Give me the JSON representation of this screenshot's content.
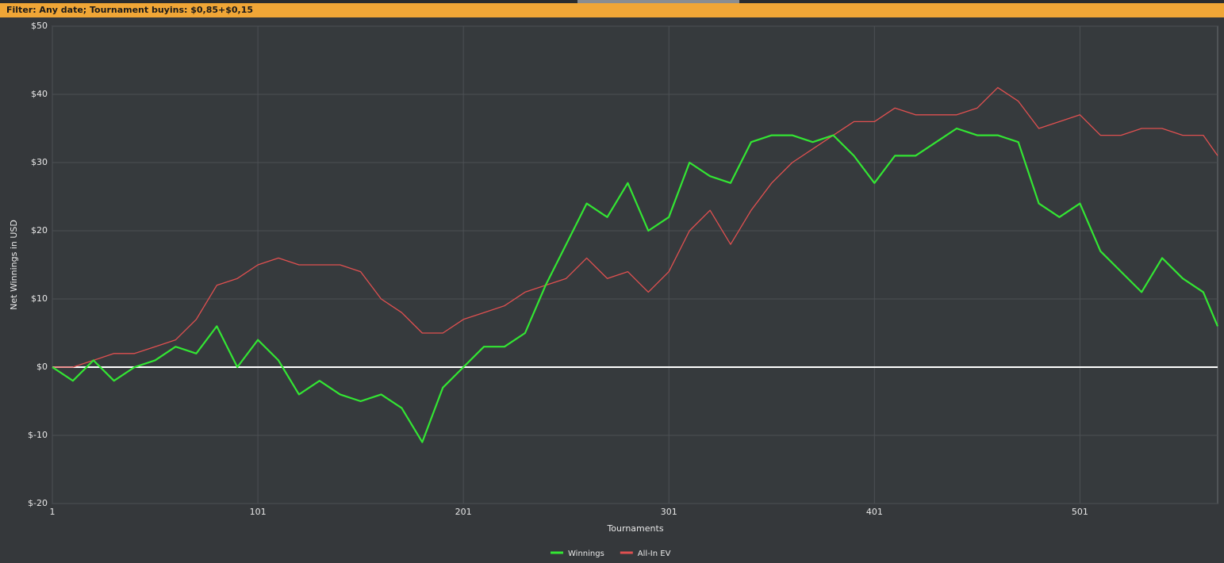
{
  "filter": "Filter: Any date; Tournament buyins: $0,85+$0,15",
  "chart_data": {
    "type": "line",
    "x_label": "Tournaments",
    "y_label": "Net Winnings in USD",
    "xlim": [
      1,
      568
    ],
    "xticks": [
      1,
      101,
      201,
      301,
      401,
      501
    ],
    "ylim": [
      -20,
      50
    ],
    "yticks": [
      {
        "value": -20,
        "label": "$-20"
      },
      {
        "value": -10,
        "label": "$-10"
      },
      {
        "value": 0,
        "label": "$0"
      },
      {
        "value": 10,
        "label": "$10"
      },
      {
        "value": 20,
        "label": "$20"
      },
      {
        "value": 30,
        "label": "$30"
      },
      {
        "value": 40,
        "label": "$40"
      },
      {
        "value": 50,
        "label": "$50"
      }
    ],
    "grid": true,
    "legend": "bottom",
    "x": [
      1,
      11,
      21,
      31,
      41,
      51,
      61,
      71,
      81,
      91,
      101,
      111,
      121,
      131,
      141,
      151,
      161,
      171,
      181,
      191,
      201,
      211,
      221,
      231,
      241,
      251,
      261,
      271,
      281,
      291,
      301,
      311,
      321,
      331,
      341,
      351,
      361,
      371,
      381,
      391,
      401,
      411,
      421,
      431,
      441,
      451,
      461,
      471,
      481,
      491,
      501,
      511,
      521,
      531,
      541,
      551,
      561,
      568
    ],
    "series": [
      {
        "name": "Winnings",
        "color": "#33e633",
        "width": 2.2,
        "values": [
          0,
          -2,
          1,
          -2,
          0,
          1,
          3,
          2,
          6,
          0,
          4,
          1,
          -4,
          -2,
          -4,
          -5,
          -4,
          -6,
          -11,
          -3,
          0,
          3,
          3,
          5,
          12,
          18,
          24,
          22,
          27,
          20,
          22,
          30,
          28,
          27,
          33,
          34,
          34,
          33,
          34,
          31,
          27,
          31,
          31,
          33,
          35,
          34,
          34,
          33,
          24,
          22,
          24,
          17,
          14,
          11,
          16,
          13,
          11,
          6
        ]
      },
      {
        "name": "All-In EV",
        "color": "#e05050",
        "width": 1.3,
        "values": [
          0,
          0,
          1,
          2,
          2,
          3,
          4,
          7,
          12,
          13,
          15,
          16,
          15,
          15,
          15,
          14,
          10,
          8,
          5,
          5,
          7,
          8,
          9,
          11,
          12,
          13,
          16,
          13,
          14,
          11,
          14,
          20,
          23,
          18,
          23,
          27,
          30,
          32,
          34,
          36,
          36,
          38,
          37,
          37,
          37,
          38,
          41,
          39,
          35,
          36,
          37,
          34,
          34,
          35,
          35,
          34,
          34,
          31
        ]
      }
    ]
  }
}
